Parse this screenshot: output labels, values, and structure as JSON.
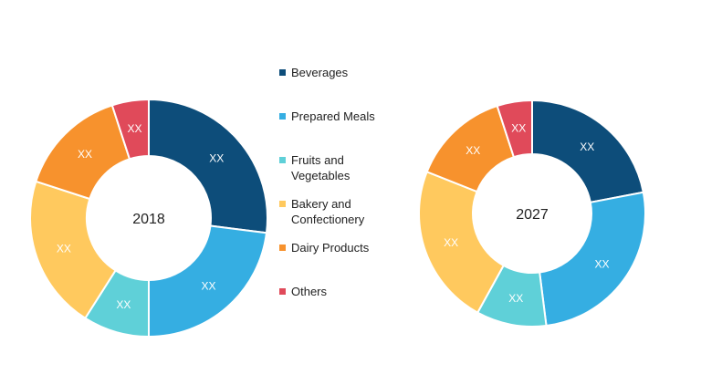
{
  "chart_data": [
    {
      "type": "donut",
      "center_label": "2018",
      "categories": [
        "Beverages",
        "Prepared Meals",
        "Fruits and Vegetables",
        "Bakery and Confectionery",
        "Dairy Products",
        "Others"
      ],
      "values": [
        27,
        23,
        9,
        21,
        15,
        5
      ],
      "data_labels": [
        "XX",
        "XX",
        "XX",
        "XX",
        "XX",
        "XX"
      ]
    },
    {
      "type": "donut",
      "center_label": "2027",
      "categories": [
        "Beverages",
        "Prepared Meals",
        "Fruits and Vegetables",
        "Bakery and Confectionery",
        "Dairy Products",
        "Others"
      ],
      "values": [
        22,
        26,
        10,
        23,
        14,
        5
      ],
      "data_labels": [
        "XX",
        "XX",
        "XX",
        "XX",
        "XX",
        "XX"
      ]
    }
  ],
  "legend": {
    "placement": "center",
    "items": [
      {
        "label": "Beverages",
        "color": "#0d4d7a"
      },
      {
        "label": "Prepared Meals",
        "color": "#35aee2"
      },
      {
        "label": "Fruits and Vegetables",
        "color": "#5fd0d8"
      },
      {
        "label": "Bakery and Confectionery",
        "color": "#ffc95e"
      },
      {
        "label": "Dairy Products",
        "color": "#f7922d"
      },
      {
        "label": "Others",
        "color": "#e04a5a"
      }
    ]
  }
}
